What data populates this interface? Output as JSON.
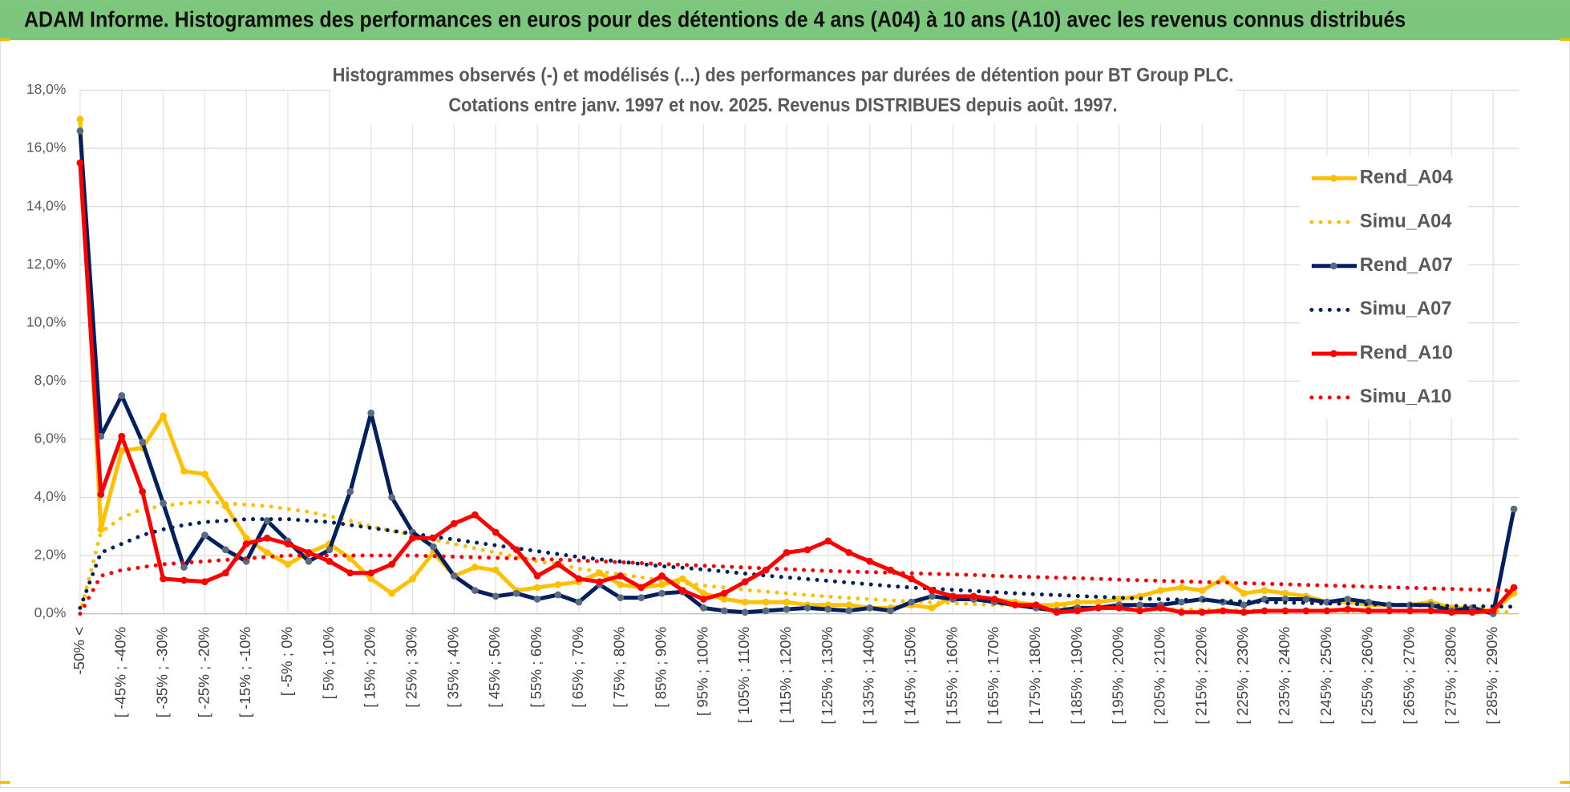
{
  "chart_data": {
    "type": "line",
    "title": "ADAM Informe. Histogrammes des performances en euros pour des détentions de 4 ans (A04) à 10 ans (A10) avec les revenus connus distribués",
    "subtitle": [
      "Histogrammes observés (-) et modélisés (...) des performances par durées de détention pour BT Group PLC.",
      "Cotations entre janv. 1997 et nov. 2025. Revenus DISTRIBUES depuis août. 1997."
    ],
    "categories": [
      "-50% <",
      null,
      "[ -45% ; -40%",
      null,
      "[ -35% ; -30%",
      null,
      "[ -25% ; -20%",
      null,
      "[ -15% ; -10%",
      null,
      "[ -5% ; 0%",
      null,
      "[ 5% ; 10%",
      null,
      "[ 15% ; 20%",
      null,
      "[ 25% ; 30%",
      null,
      "[ 35% ; 40%",
      null,
      "[ 45% ; 50%",
      null,
      "[ 55% ; 60%",
      null,
      "[ 65% ; 70%",
      null,
      "[ 75% ; 80%",
      null,
      "[ 85% ; 90%",
      null,
      "[ 95% ; 100%",
      null,
      "[ 105% ; 110%",
      null,
      "[ 115% ; 120%",
      null,
      "[ 125% ; 130%",
      null,
      "[ 135% ; 140%",
      null,
      "[ 145% ; 150%",
      null,
      "[ 155% ; 160%",
      null,
      "[ 165% ; 170%",
      null,
      "[ 175% ; 180%",
      null,
      "[ 185% ; 190%",
      null,
      "[ 195% ; 200%",
      null,
      "[ 205% ; 210%",
      null,
      "[ 215% ; 220%",
      null,
      "[ 225% ; 230%",
      null,
      "[ 235% ; 240%",
      null,
      "[ 245% ; 250%",
      null,
      "[ 255% ; 260%",
      null,
      "[ 265% ; 270%",
      null,
      "[ 275% ; 280%",
      null,
      "[ 285% ; 290%",
      null
    ],
    "series": [
      {
        "name": "Rend_A04",
        "color": "#ffc000",
        "style": "solid",
        "values": [
          17.0,
          2.9,
          5.6,
          5.7,
          6.8,
          4.9,
          4.8,
          3.7,
          2.6,
          2.1,
          1.7,
          2.1,
          2.4,
          1.9,
          1.2,
          0.7,
          1.2,
          2.1,
          1.3,
          1.6,
          1.5,
          0.8,
          0.9,
          1.0,
          1.1,
          1.4,
          1.0,
          0.9,
          1.0,
          1.2,
          0.7,
          0.5,
          0.4,
          0.4,
          0.4,
          0.3,
          0.3,
          0.3,
          0.2,
          0.2,
          0.3,
          0.2,
          0.6,
          0.5,
          0.5,
          0.4,
          0.3,
          0.3,
          0.4,
          0.4,
          0.5,
          0.6,
          0.8,
          0.9,
          0.8,
          1.2,
          0.7,
          0.8,
          0.7,
          0.6,
          0.4,
          0.4,
          0.3,
          0.3,
          0.3,
          0.4,
          0.2,
          0.2,
          0.1,
          0.7
        ]
      },
      {
        "name": "Simu_A04",
        "color": "#ffc000",
        "style": "dotted",
        "values": [
          0.0,
          2.8,
          3.3,
          3.6,
          3.7,
          3.8,
          3.85,
          3.8,
          3.75,
          3.7,
          3.6,
          3.5,
          3.35,
          3.2,
          3.0,
          2.85,
          2.7,
          2.55,
          2.4,
          2.25,
          2.1,
          1.95,
          1.8,
          1.7,
          1.55,
          1.45,
          1.35,
          1.25,
          1.15,
          1.05,
          0.97,
          0.9,
          0.82,
          0.76,
          0.7,
          0.64,
          0.59,
          0.54,
          0.5,
          0.46,
          0.42,
          0.39,
          0.36,
          0.33,
          0.3,
          0.28,
          0.26,
          0.24,
          0.22,
          0.2,
          0.19,
          0.17,
          0.16,
          0.15,
          0.14,
          0.13,
          0.12,
          0.11,
          0.1,
          0.1,
          0.09,
          0.09,
          0.08,
          0.08,
          0.07,
          0.07,
          0.06,
          0.06,
          0.06,
          0.05
        ]
      },
      {
        "name": "Rend_A07",
        "color": "#002060",
        "style": "solid",
        "marker_color": "#5b6b80",
        "values": [
          16.6,
          6.1,
          7.5,
          5.9,
          3.8,
          1.6,
          2.7,
          2.2,
          1.8,
          3.2,
          2.5,
          1.8,
          2.2,
          4.2,
          6.9,
          4.0,
          2.8,
          2.3,
          1.3,
          0.8,
          0.6,
          0.7,
          0.5,
          0.65,
          0.4,
          1.0,
          0.55,
          0.55,
          0.7,
          0.75,
          0.2,
          0.1,
          0.05,
          0.1,
          0.15,
          0.2,
          0.15,
          0.1,
          0.2,
          0.1,
          0.4,
          0.6,
          0.5,
          0.5,
          0.4,
          0.3,
          0.2,
          0.1,
          0.2,
          0.2,
          0.3,
          0.3,
          0.3,
          0.4,
          0.5,
          0.4,
          0.3,
          0.5,
          0.5,
          0.5,
          0.4,
          0.5,
          0.4,
          0.3,
          0.3,
          0.3,
          0.1,
          0.2,
          0.0,
          3.6
        ]
      },
      {
        "name": "Simu_A07",
        "color": "#002060",
        "style": "dotted",
        "values": [
          0.2,
          2.1,
          2.4,
          2.7,
          2.9,
          3.05,
          3.15,
          3.2,
          3.25,
          3.25,
          3.25,
          3.2,
          3.15,
          3.05,
          2.95,
          2.85,
          2.75,
          2.65,
          2.55,
          2.45,
          2.35,
          2.25,
          2.15,
          2.05,
          1.95,
          1.87,
          1.79,
          1.71,
          1.63,
          1.58,
          1.52,
          1.45,
          1.38,
          1.31,
          1.25,
          1.19,
          1.13,
          1.07,
          1.01,
          0.95,
          0.9,
          0.86,
          0.82,
          0.78,
          0.74,
          0.7,
          0.67,
          0.64,
          0.61,
          0.58,
          0.55,
          0.52,
          0.5,
          0.48,
          0.46,
          0.44,
          0.42,
          0.4,
          0.38,
          0.37,
          0.35,
          0.34,
          0.32,
          0.31,
          0.3,
          0.28,
          0.27,
          0.26,
          0.25,
          0.24
        ]
      },
      {
        "name": "Rend_A10",
        "color": "#ff0000",
        "style": "solid",
        "values": [
          15.5,
          4.1,
          6.1,
          4.2,
          1.2,
          1.15,
          1.1,
          1.4,
          2.4,
          2.6,
          2.4,
          2.1,
          1.8,
          1.4,
          1.4,
          1.7,
          2.6,
          2.6,
          3.1,
          3.4,
          2.8,
          2.2,
          1.3,
          1.7,
          1.2,
          1.1,
          1.3,
          0.9,
          1.3,
          0.8,
          0.5,
          0.7,
          1.1,
          1.5,
          2.1,
          2.2,
          2.5,
          2.1,
          1.8,
          1.5,
          1.2,
          0.8,
          0.6,
          0.6,
          0.5,
          0.3,
          0.3,
          0.05,
          0.1,
          0.2,
          0.2,
          0.1,
          0.2,
          0.05,
          0.05,
          0.1,
          0.05,
          0.1,
          0.1,
          0.1,
          0.1,
          0.15,
          0.1,
          0.1,
          0.1,
          0.1,
          0.05,
          0.05,
          0.1,
          0.9
        ]
      },
      {
        "name": "Simu_A10",
        "color": "#ff0000",
        "style": "dotted",
        "values": [
          0.0,
          1.3,
          1.5,
          1.6,
          1.7,
          1.75,
          1.8,
          1.85,
          1.9,
          1.95,
          2.0,
          2.0,
          2.0,
          2.0,
          2.0,
          2.0,
          2.0,
          1.98,
          1.96,
          1.94,
          1.92,
          1.9,
          1.88,
          1.86,
          1.83,
          1.8,
          1.77,
          1.74,
          1.71,
          1.68,
          1.65,
          1.62,
          1.59,
          1.56,
          1.53,
          1.5,
          1.47,
          1.45,
          1.43,
          1.41,
          1.39,
          1.37,
          1.35,
          1.33,
          1.3,
          1.28,
          1.26,
          1.24,
          1.22,
          1.2,
          1.17,
          1.15,
          1.13,
          1.11,
          1.09,
          1.07,
          1.05,
          1.03,
          1.01,
          0.99,
          0.97,
          0.95,
          0.93,
          0.91,
          0.89,
          0.87,
          0.85,
          0.83,
          0.81,
          0.79
        ]
      }
    ],
    "ylim": [
      0,
      18
    ],
    "yticks": [
      {
        "value": 0,
        "label": "0,0%"
      },
      {
        "value": 2,
        "label": "2,0%"
      },
      {
        "value": 4,
        "label": "4,0%"
      },
      {
        "value": 6,
        "label": "6,0%"
      },
      {
        "value": 8,
        "label": "8,0%"
      },
      {
        "value": 10,
        "label": "10,0%"
      },
      {
        "value": 12,
        "label": "12,0%"
      },
      {
        "value": 14,
        "label": "14,0%"
      },
      {
        "value": 16,
        "label": "16,0%"
      },
      {
        "value": 18,
        "label": "18,0%"
      }
    ],
    "grid": true,
    "legend": "right"
  }
}
